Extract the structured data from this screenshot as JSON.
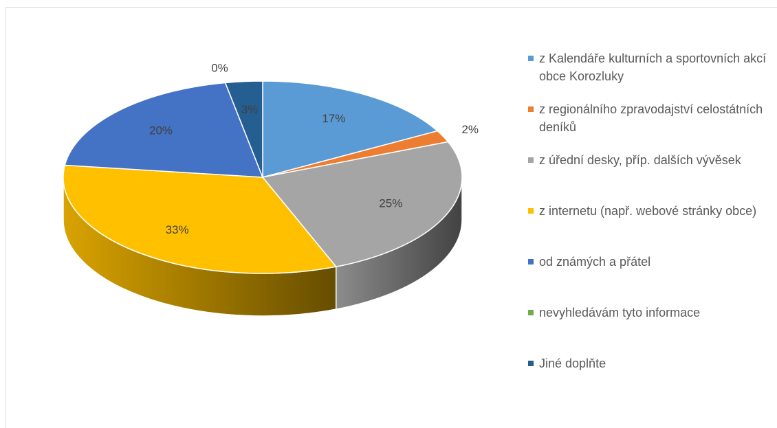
{
  "chart_data": {
    "type": "pie",
    "categories": [
      "z Kalendáře kulturních a sportovních akcí obce Korozluky",
      "z regionálního zpravodajství celostátních deníků",
      "z úřední desky, příp. dalších vývěsek",
      "z internetu (např. webové stránky obce)",
      "od známých a přátel",
      "nevyhledávám tyto informace",
      "Jiné doplňte"
    ],
    "values": [
      17,
      2,
      25,
      33,
      20,
      0,
      3
    ],
    "value_labels": [
      "17%",
      "2%",
      "25%",
      "33%",
      "20%",
      "0%",
      "3%"
    ],
    "colors": [
      "#5b9bd5",
      "#ed7d31",
      "#a5a5a5",
      "#ffc000",
      "#4472c4",
      "#70ad47",
      "#255e91"
    ],
    "legend": "right"
  }
}
